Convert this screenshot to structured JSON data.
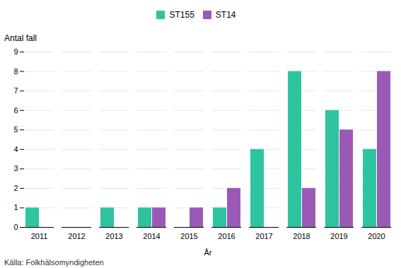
{
  "chart_data": {
    "type": "bar",
    "categories": [
      "2011",
      "2012",
      "2013",
      "2014",
      "2015",
      "2016",
      "2017",
      "2018",
      "2019",
      "2020"
    ],
    "series": [
      {
        "name": "ST155",
        "color": "#2ec4a0",
        "values": [
          1,
          0,
          1,
          1,
          0,
          1,
          4,
          8,
          6,
          4
        ]
      },
      {
        "name": "ST14",
        "color": "#9b59b6",
        "values": [
          0,
          0,
          0,
          1,
          1,
          2,
          0,
          2,
          5,
          8
        ]
      }
    ],
    "x_label": "År",
    "y_label": "Antal fall",
    "caption": "Källa: Folkhälsomyndigheten",
    "ylim": [
      0,
      9
    ],
    "yticks": [
      0,
      1,
      2,
      3,
      4,
      5,
      6,
      7,
      8,
      9
    ],
    "grid": true,
    "legend": "top"
  }
}
